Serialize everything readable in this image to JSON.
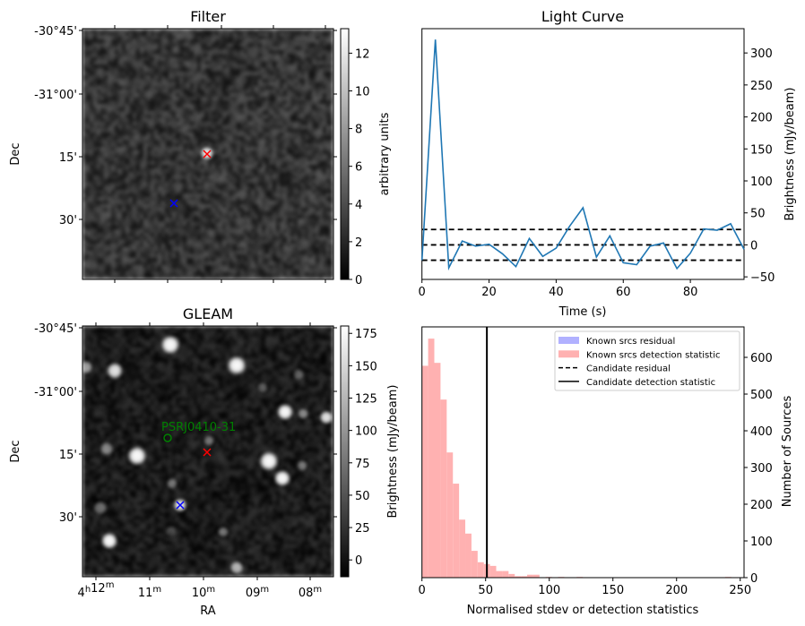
{
  "panels": {
    "filter": {
      "title": "Filter",
      "ylabel": "Dec",
      "dec_ticks": [
        "-30°45'",
        "-31°00'",
        "15'",
        "30'"
      ],
      "colorbar_label": "arbitrary units",
      "colorbar_ticks": [
        "0",
        "2",
        "4",
        "6",
        "8",
        "10",
        "12"
      ],
      "colorbar_range": [
        0,
        13.3
      ]
    },
    "gleam": {
      "title": "GLEAM",
      "xlabel": "RA",
      "ylabel": "Dec",
      "dec_ticks": [
        "-30°45'",
        "-31°00'",
        "15'",
        "30'"
      ],
      "ra_ticks": [
        [
          [
            "4",
            "h"
          ],
          [
            "12",
            "m"
          ]
        ],
        [
          [
            "11",
            "m"
          ]
        ],
        [
          [
            "10",
            "m"
          ]
        ],
        [
          [
            "09",
            "m"
          ]
        ],
        [
          [
            "08",
            "m"
          ]
        ]
      ],
      "source_label": "PSRJ0410-31",
      "colorbar_label": "Brightness (mJy/beam)",
      "colorbar_ticks": [
        "0",
        "25",
        "50",
        "75",
        "100",
        "125",
        "150",
        "175"
      ],
      "colorbar_range": [
        -13,
        180.7
      ]
    }
  },
  "colors": {
    "line": "#1f77b4",
    "hist_detection": "#ffb1b1",
    "hist_residual": "#b1b1ff",
    "candidate_marker": "#ff0000",
    "reference_marker": "#0000ff",
    "psr_marker": "#008000"
  },
  "chart_data": [
    {
      "type": "line",
      "title": "Light Curve",
      "xlabel": "Time (s)",
      "ylabel": "Brightness (mJy/beam)",
      "xlim": [
        0,
        96
      ],
      "ylim": [
        -54,
        338
      ],
      "xticks": [
        0,
        20,
        40,
        60,
        80
      ],
      "yticks": [
        -50,
        0,
        50,
        100,
        150,
        200,
        250,
        300
      ],
      "x": [
        0,
        4,
        8,
        12,
        16,
        20,
        24,
        28,
        32,
        36,
        40,
        44,
        48,
        52,
        56,
        60,
        64,
        68,
        72,
        76,
        80,
        84,
        88,
        92,
        96
      ],
      "y": [
        -24,
        321,
        -36,
        6,
        -2,
        1,
        -14,
        -34,
        10,
        -18,
        -5,
        29,
        58,
        -19,
        14,
        -28,
        -31,
        -2,
        3,
        -37,
        -13,
        25,
        23,
        33,
        -7
      ],
      "hlines": [
        {
          "value": 24,
          "style": "dashed"
        },
        {
          "value": 0,
          "style": "dashed"
        },
        {
          "value": -24,
          "style": "dashed"
        }
      ]
    },
    {
      "type": "bar",
      "subtype": "histogram",
      "xlabel": "Normalised stdev or detection statistics",
      "ylabel": "Number of Sources",
      "xlim": [
        0,
        253
      ],
      "ylim": [
        0,
        683
      ],
      "xticks": [
        0,
        50,
        100,
        150,
        200,
        250
      ],
      "yticks": [
        0,
        100,
        200,
        300,
        400,
        500,
        600
      ],
      "bin_start": 0,
      "bin_width": 4.86,
      "counts": [
        577,
        651,
        585,
        485,
        341,
        256,
        158,
        120,
        73,
        42,
        37,
        32,
        18,
        18,
        10,
        4,
        4,
        8,
        8,
        0,
        2,
        0,
        2,
        0,
        0,
        2,
        0,
        0,
        0,
        0,
        0,
        0,
        0,
        0,
        0,
        0,
        0,
        0,
        0,
        0,
        0,
        0,
        0,
        0,
        0,
        0,
        0,
        0,
        0,
        2
      ],
      "candidate_detection_statistic": 51,
      "legend": {
        "position": "upper right",
        "entries": [
          "Known srcs residual",
          "Known srcs detection statistic",
          "Candidate residual",
          "Candidate detection statistic"
        ]
      }
    }
  ]
}
